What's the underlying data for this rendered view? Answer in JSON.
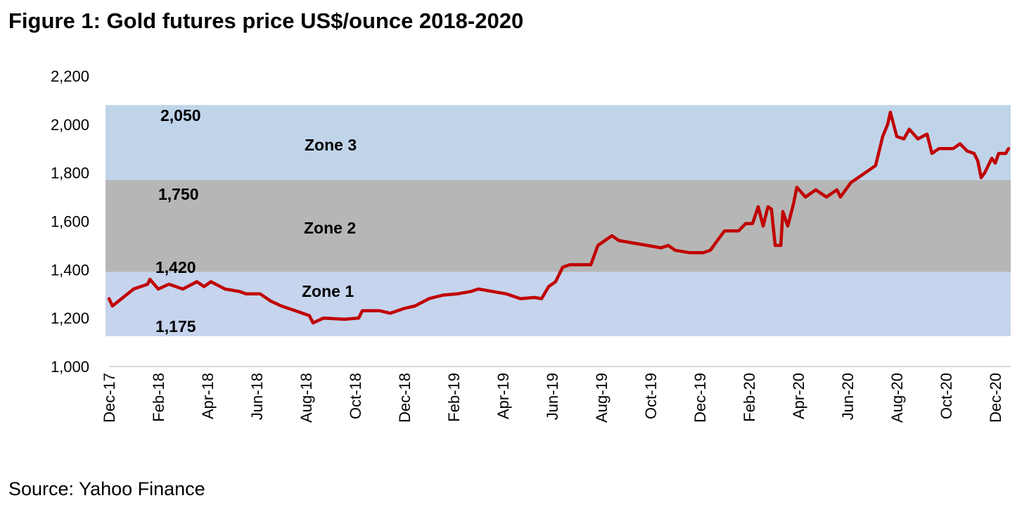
{
  "chart_data": {
    "type": "line",
    "title": "Figure 1: Gold futures price US$/ounce 2018-2020",
    "source": "Source: Yahoo Finance",
    "xlabel": "",
    "ylabel": "",
    "ylim": [
      1000,
      2200
    ],
    "yticks": [
      "1,000",
      "1,200",
      "1,400",
      "1,600",
      "1,800",
      "2,000",
      "2,200"
    ],
    "ytick_values": [
      1000,
      1200,
      1400,
      1600,
      1800,
      2000,
      2200
    ],
    "x_unit": "months since Dec-2017",
    "xticks": [
      "Dec-17",
      "Feb-18",
      "Apr-18",
      "Jun-18",
      "Aug-18",
      "Oct-18",
      "Dec-18",
      "Feb-19",
      "Apr-19",
      "Jun-19",
      "Aug-19",
      "Oct-19",
      "Dec-19",
      "Feb-20",
      "Apr-20",
      "Jun-20",
      "Aug-20",
      "Oct-20",
      "Dec-20"
    ],
    "grid": false,
    "zones": [
      {
        "name": "Zone 3",
        "label": "2,050",
        "from": 1770,
        "to": 2080,
        "color": "#c0d4e9"
      },
      {
        "name": "Zone 2",
        "label": "1,750",
        "from": 1390,
        "to": 1770,
        "color": "#b6b6b6"
      },
      {
        "name": "Zone 1",
        "label": "1,420",
        "label2": "1,175",
        "from": 1125,
        "to": 1390,
        "color": "#c6d4ed"
      }
    ],
    "series": [
      {
        "name": "Gold futures price",
        "color": "#c00000",
        "x": [
          0,
          0.14,
          1,
          1.57,
          1.66,
          2,
          2.43,
          3,
          3.57,
          3.86,
          4.14,
          4.71,
          5.29,
          5.57,
          6.14,
          6.57,
          7,
          7.57,
          8.14,
          8.29,
          8.71,
          9.57,
          10.14,
          10.29,
          11,
          11.43,
          12,
          12.43,
          13,
          13.57,
          14.14,
          14.71,
          15,
          15.57,
          16.14,
          16.71,
          17.29,
          17.57,
          17.86,
          18.14,
          18.43,
          18.71,
          19.57,
          19.86,
          20.43,
          20.71,
          21.29,
          21.86,
          22.43,
          22.71,
          23,
          23.57,
          24.14,
          24.43,
          24.71,
          25,
          25.57,
          25.86,
          26.14,
          26.37,
          26.57,
          26.77,
          26.91,
          27.06,
          27.29,
          27.37,
          27.57,
          27.8,
          27.94,
          28.29,
          28.71,
          29.14,
          29.57,
          29.71,
          30.14,
          30.43,
          30.86,
          31.14,
          31.43,
          31.63,
          31.74,
          32,
          32.29,
          32.51,
          32.86,
          33.23,
          33.43,
          33.71,
          34.29,
          34.57,
          34.86,
          35.14,
          35.29,
          35.43,
          35.57,
          35.86,
          36,
          36.14,
          36.43,
          36.54
        ],
        "values": [
          1280,
          1250,
          1320,
          1340,
          1360,
          1320,
          1340,
          1320,
          1350,
          1330,
          1350,
          1320,
          1310,
          1300,
          1300,
          1270,
          1250,
          1230,
          1210,
          1180,
          1200,
          1195,
          1200,
          1230,
          1230,
          1220,
          1240,
          1250,
          1280,
          1295,
          1300,
          1310,
          1320,
          1310,
          1300,
          1280,
          1285,
          1280,
          1330,
          1350,
          1410,
          1420,
          1420,
          1500,
          1540,
          1520,
          1510,
          1500,
          1490,
          1500,
          1480,
          1470,
          1470,
          1480,
          1520,
          1560,
          1560,
          1590,
          1590,
          1660,
          1580,
          1660,
          1650,
          1500,
          1500,
          1640,
          1580,
          1670,
          1740,
          1700,
          1730,
          1700,
          1730,
          1700,
          1760,
          1780,
          1810,
          1830,
          1950,
          2000,
          2050,
          1950,
          1940,
          1980,
          1940,
          1960,
          1880,
          1900,
          1900,
          1920,
          1890,
          1880,
          1850,
          1780,
          1800,
          1860,
          1840,
          1880,
          1880,
          1900
        ]
      }
    ]
  }
}
